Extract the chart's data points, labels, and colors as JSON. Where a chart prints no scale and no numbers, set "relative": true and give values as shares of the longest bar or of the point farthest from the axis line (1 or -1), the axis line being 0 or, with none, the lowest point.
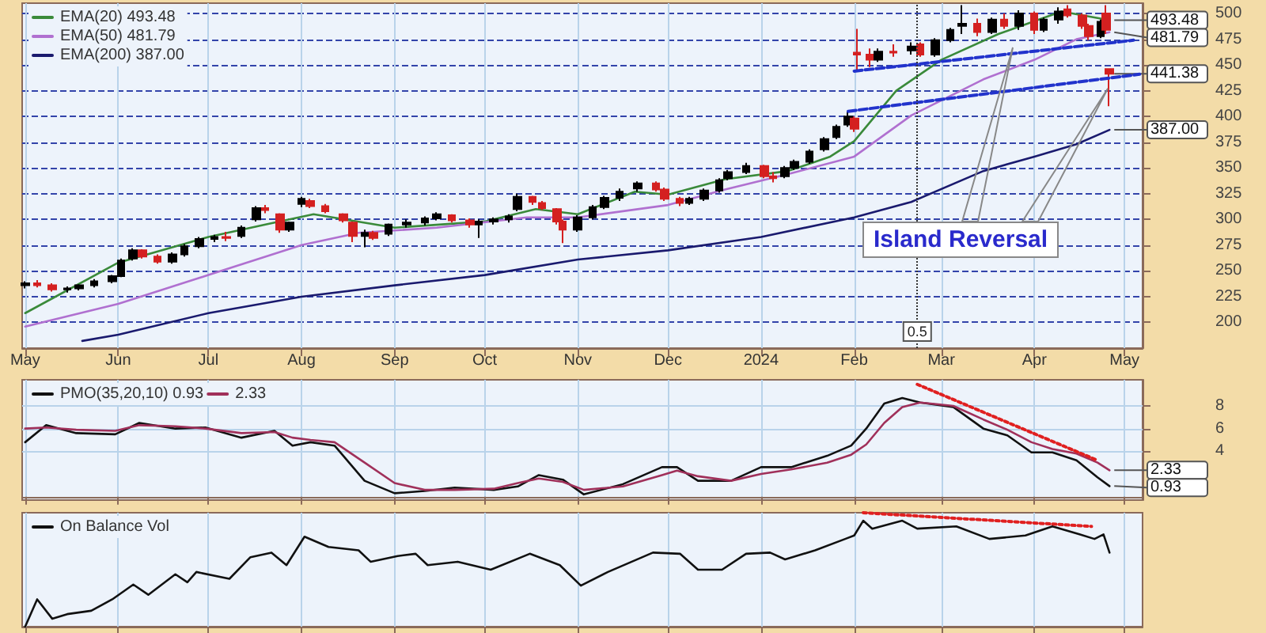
{
  "chart_data": [
    {
      "type": "candlestick",
      "colors": [
        "#000000",
        "#d42020",
        "#d42020",
        "#000000",
        "#000000",
        "#000000",
        "#000000",
        "#000000",
        "#000000",
        "#d42020",
        "#d42020",
        "#000000",
        "#000000",
        "#000000",
        "#000000",
        "#d42020",
        "#000000",
        "#000000",
        "#d42020",
        "#d42020",
        "#000000",
        "#000000",
        "#d42020",
        "#d42020",
        "#d42020",
        "#d42020",
        "#000000",
        "#d42020",
        "#000000",
        "#000000",
        "#000000",
        "#000000",
        "#d42020",
        "#d42020",
        "#000000",
        "#000000",
        "#000000",
        "#000000",
        "#d42020",
        "#d42020",
        "#d42020",
        "#d42020",
        "#000000",
        "#000000",
        "#000000",
        "#000000",
        "#000000",
        "#d42020",
        "#d42020",
        "#d42020",
        "#000000",
        "#000000",
        "#000000",
        "#000000",
        "#000000",
        "#d42020",
        "#d42020",
        "#000000",
        "#000000",
        "#000000",
        "#000000",
        "#000000",
        "#000000",
        "#d42020",
        "#d42020",
        "#d42020",
        "#000000",
        "#d42020",
        "#000000",
        "#d42020",
        "#000000",
        "#000000",
        "#000000",
        "#d42020",
        "#000000",
        "#d42020",
        "#000000",
        "#d42020",
        "#000000",
        "#000000",
        "#d42020",
        "#d42020",
        "#d42020",
        "#000000",
        "#d42020",
        "#d42020"
      ],
      "x": [
        "2023-05-01",
        "2023-05-05",
        "2023-05-10",
        "2023-05-15",
        "2023-05-19",
        "2023-05-24",
        "2023-05-30",
        "2023-06-02",
        "2023-06-06",
        "2023-06-09",
        "2023-06-14",
        "2023-06-19",
        "2023-06-23",
        "2023-06-28",
        "2023-07-03",
        "2023-07-07",
        "2023-07-12",
        "2023-07-17",
        "2023-07-20",
        "2023-07-25",
        "2023-07-28",
        "2023-08-01",
        "2023-08-04",
        "2023-08-09",
        "2023-08-15",
        "2023-08-18",
        "2023-08-22",
        "2023-08-25",
        "2023-08-30",
        "2023-09-05",
        "2023-09-11",
        "2023-09-15",
        "2023-09-20",
        "2023-09-26",
        "2023-09-29",
        "2023-10-04",
        "2023-10-09",
        "2023-10-12",
        "2023-10-17",
        "2023-10-20",
        "2023-10-25",
        "2023-10-27",
        "2023-11-01",
        "2023-11-06",
        "2023-11-10",
        "2023-11-15",
        "2023-11-21",
        "2023-11-27",
        "2023-11-30",
        "2023-12-05",
        "2023-12-08",
        "2023-12-13",
        "2023-12-18",
        "2023-12-21",
        "2023-12-27",
        "2024-01-02",
        "2024-01-05",
        "2024-01-09",
        "2024-01-12",
        "2024-01-17",
        "2024-01-22",
        "2024-01-26",
        "2024-01-30",
        "2024-02-01",
        "2024-02-02",
        "2024-02-06",
        "2024-02-09",
        "2024-02-14",
        "2024-02-20",
        "2024-02-23",
        "2024-02-28",
        "2024-03-04",
        "2024-03-08",
        "2024-03-13",
        "2024-03-18",
        "2024-03-22",
        "2024-03-27",
        "2024-04-01",
        "2024-04-04",
        "2024-04-09",
        "2024-04-12",
        "2024-04-17",
        "2024-04-19",
        "2024-04-23",
        "2024-04-25",
        "2024-04-26"
      ],
      "ohlc": [
        [
          236,
          240,
          233,
          238
        ],
        [
          238,
          241,
          234,
          236
        ],
        [
          236,
          238,
          230,
          232
        ],
        [
          232,
          235,
          229,
          233
        ],
        [
          233,
          237,
          231,
          236
        ],
        [
          236,
          242,
          234,
          240
        ],
        [
          240,
          246,
          238,
          245
        ],
        [
          245,
          262,
          244,
          260
        ],
        [
          262,
          272,
          260,
          270
        ],
        [
          270,
          271,
          262,
          264
        ],
        [
          264,
          266,
          257,
          259
        ],
        [
          259,
          268,
          257,
          266
        ],
        [
          266,
          276,
          264,
          274
        ],
        [
          274,
          283,
          272,
          281
        ],
        [
          281,
          285,
          278,
          283
        ],
        [
          283,
          288,
          279,
          282
        ],
        [
          284,
          294,
          282,
          292
        ],
        [
          300,
          313,
          298,
          311
        ],
        [
          311,
          314,
          306,
          309
        ],
        [
          305,
          306,
          287,
          290
        ],
        [
          290,
          298,
          288,
          297
        ],
        [
          315,
          322,
          312,
          320
        ],
        [
          318,
          320,
          311,
          313
        ],
        [
          313,
          315,
          306,
          308
        ],
        [
          305,
          306,
          297,
          299
        ],
        [
          297,
          298,
          278,
          284
        ],
        [
          284,
          290,
          273,
          287
        ],
        [
          287,
          289,
          280,
          282
        ],
        [
          286,
          296,
          284,
          295
        ],
        [
          295,
          300,
          292,
          297
        ],
        [
          297,
          303,
          294,
          301
        ],
        [
          301,
          307,
          299,
          305
        ],
        [
          304,
          305,
          297,
          299
        ],
        [
          299,
          301,
          292,
          295
        ],
        [
          295,
          300,
          282,
          298
        ],
        [
          298,
          302,
          295,
          300
        ],
        [
          300,
          305,
          297,
          303
        ],
        [
          310,
          325,
          308,
          322
        ],
        [
          322,
          323,
          314,
          317
        ],
        [
          316,
          318,
          309,
          311
        ],
        [
          310,
          311,
          295,
          298
        ],
        [
          298,
          300,
          277,
          290
        ],
        [
          290,
          304,
          288,
          302
        ],
        [
          302,
          314,
          300,
          312
        ],
        [
          312,
          323,
          310,
          321
        ],
        [
          321,
          330,
          318,
          327
        ],
        [
          330,
          337,
          327,
          335
        ],
        [
          335,
          337,
          327,
          329
        ],
        [
          329,
          331,
          318,
          320
        ],
        [
          320,
          322,
          313,
          316
        ],
        [
          316,
          322,
          314,
          320
        ],
        [
          320,
          330,
          318,
          328
        ],
        [
          328,
          340,
          326,
          338
        ],
        [
          340,
          348,
          338,
          346
        ],
        [
          346,
          355,
          344,
          352
        ],
        [
          352,
          353,
          340,
          342
        ],
        [
          342,
          346,
          336,
          340
        ],
        [
          342,
          352,
          340,
          350
        ],
        [
          350,
          358,
          348,
          356
        ],
        [
          356,
          368,
          354,
          366
        ],
        [
          368,
          380,
          366,
          378
        ],
        [
          380,
          392,
          378,
          390
        ],
        [
          392,
          405,
          390,
          400
        ],
        [
          398,
          400,
          385,
          388
        ],
        [
          462,
          485,
          445,
          460
        ],
        [
          460,
          466,
          448,
          455
        ],
        [
          455,
          466,
          453,
          463
        ],
        [
          463,
          470,
          458,
          462
        ],
        [
          464,
          472,
          460,
          468
        ],
        [
          470,
          472,
          458,
          460
        ],
        [
          460,
          476,
          458,
          474
        ],
        [
          474,
          486,
          472,
          484
        ],
        [
          488,
          508,
          480,
          490
        ],
        [
          490,
          495,
          478,
          482
        ],
        [
          482,
          496,
          480,
          494
        ],
        [
          494,
          500,
          485,
          488
        ],
        [
          488,
          503,
          484,
          500
        ],
        [
          500,
          502,
          480,
          484
        ],
        [
          484,
          496,
          482,
          494
        ],
        [
          494,
          506,
          490,
          502
        ],
        [
          504,
          508,
          496,
          498
        ],
        [
          498,
          500,
          485,
          488
        ],
        [
          488,
          490,
          474,
          478
        ],
        [
          478,
          494,
          476,
          492
        ],
        [
          500,
          508,
          480,
          484
        ],
        [
          446,
          446,
          410,
          441.38
        ]
      ],
      "series": [
        {
          "type": "line",
          "name": "EMA(20) 493.48",
          "color": "#3a8a3a",
          "x": [
            "2023-05-01",
            "2023-06-01",
            "2023-07-01",
            "2023-07-20",
            "2023-08-05",
            "2023-09-01",
            "2023-10-01",
            "2023-10-18",
            "2023-11-01",
            "2023-11-20",
            "2023-12-01",
            "2023-12-20",
            "2024-01-10",
            "2024-01-24",
            "2024-02-01",
            "2024-02-15",
            "2024-03-01",
            "2024-03-20",
            "2024-04-10",
            "2024-04-26"
          ],
          "values": [
            209,
            258,
            283,
            295,
            305,
            292,
            298,
            310,
            305,
            327,
            324,
            339,
            347,
            361,
            376,
            425,
            455,
            480,
            502,
            493.48
          ]
        },
        {
          "type": "line",
          "name": "EMA(50) 481.79",
          "color": "#b070d0",
          "x": [
            "2023-05-01",
            "2023-06-01",
            "2023-07-01",
            "2023-08-01",
            "2023-08-20",
            "2023-09-15",
            "2023-10-15",
            "2023-11-01",
            "2023-12-01",
            "2023-12-20",
            "2024-01-10",
            "2024-02-01",
            "2024-02-20",
            "2024-03-15",
            "2024-04-01",
            "2024-04-15",
            "2024-04-26"
          ],
          "values": [
            196,
            218,
            246,
            275,
            287,
            292,
            302,
            302,
            314,
            329,
            344,
            361,
            401,
            436,
            455,
            475,
            481.79
          ]
        },
        {
          "type": "line",
          "name": "EMA(200) 387.00",
          "color": "#1a1a6e",
          "x": [
            "2023-05-20",
            "2023-06-01",
            "2023-07-01",
            "2023-08-01",
            "2023-09-01",
            "2023-10-01",
            "2023-11-01",
            "2023-12-01",
            "2024-01-01",
            "2024-02-01",
            "2024-02-20",
            "2024-03-15",
            "2024-04-01",
            "2024-04-15",
            "2024-04-26"
          ],
          "values": [
            182,
            188,
            209,
            225,
            236,
            246,
            261,
            270,
            283,
            302,
            317,
            347,
            361,
            373,
            387
          ]
        },
        {
          "type": "line",
          "color": "#2233cc",
          "line_style": "dashed",
          "x": [
            "2024-02-01",
            "2024-05-04"
          ],
          "values": [
            444,
            474
          ]
        },
        {
          "type": "line",
          "color": "#2233cc",
          "line_style": "dashed",
          "x": [
            "2024-01-30",
            "2024-05-06"
          ],
          "values": [
            405,
            441
          ]
        }
      ],
      "xlim": [
        "2023-04-30",
        "2024-05-07"
      ],
      "xticks": [
        {
          "value": "2023-05-01",
          "label": "May"
        },
        {
          "value": "2023-06-01",
          "label": "Jun"
        },
        {
          "value": "2023-07-01",
          "label": "Jul"
        },
        {
          "value": "2023-08-01",
          "label": "Aug"
        },
        {
          "value": "2023-09-01",
          "label": "Sep"
        },
        {
          "value": "2023-10-01",
          "label": "Oct"
        },
        {
          "value": "2023-11-01",
          "label": "Nov"
        },
        {
          "value": "2023-12-01",
          "label": "Dec"
        },
        {
          "value": "2024-01-01",
          "label": "2024"
        },
        {
          "value": "2024-02-01",
          "label": "Feb"
        },
        {
          "value": "2024-03-01",
          "label": "Mar"
        },
        {
          "value": "2024-04-01",
          "label": "Apr"
        },
        {
          "value": "2024-05-01",
          "label": "May"
        }
      ],
      "ylim": [
        175,
        510
      ],
      "yticks": [
        200,
        225,
        250,
        275,
        300,
        325,
        350,
        375,
        400,
        425,
        450,
        475,
        500
      ],
      "grid": true,
      "legend": "top left",
      "ref_lines": [
        {
          "axis": "x",
          "value": "2024-02-22",
          "label": "0.5",
          "line_style": "dotted"
        }
      ],
      "annotations": [
        "Island Reversal",
        {
          "text": "493.48",
          "x": "2024-04-26",
          "y": 493.48
        },
        {
          "text": "481.79",
          "x": "2024-04-26",
          "y": 481.79
        },
        {
          "text": "441.38",
          "x": "2024-04-26",
          "y": 441.38
        },
        {
          "text": "387.00",
          "x": "2024-04-26",
          "y": 387
        }
      ]
    },
    {
      "type": "line",
      "tick_labels": "y",
      "grid": true,
      "legend": "top left",
      "x": [
        "2023-05-01",
        "2023-05-08",
        "2023-05-18",
        "2023-05-31",
        "2023-06-08",
        "2023-06-20",
        "2023-06-30",
        "2023-07-12",
        "2023-07-23",
        "2023-07-29",
        "2023-08-04",
        "2023-08-12",
        "2023-08-22",
        "2023-09-01",
        "2023-09-11",
        "2023-09-21",
        "2023-10-04",
        "2023-10-12",
        "2023-10-19",
        "2023-10-27",
        "2023-11-03",
        "2023-11-16",
        "2023-11-29",
        "2023-12-04",
        "2023-12-11",
        "2023-12-22",
        "2024-01-01",
        "2024-01-11",
        "2024-01-23",
        "2024-01-31",
        "2024-02-05",
        "2024-02-11",
        "2024-02-17",
        "2024-02-23",
        "2024-03-05",
        "2024-03-15",
        "2024-03-23",
        "2024-03-31",
        "2024-04-07",
        "2024-04-15",
        "2024-04-22",
        "2024-04-26"
      ],
      "series": [
        {
          "name": "PMO(35,20,10) 0.93",
          "color": "#111111",
          "values": [
            4.8,
            6.3,
            5.6,
            5.5,
            6.5,
            6.0,
            6.1,
            5.2,
            5.8,
            4.5,
            4.8,
            4.5,
            1.4,
            0.3,
            0.5,
            0.8,
            0.6,
            0.9,
            1.9,
            1.5,
            0.2,
            1.1,
            2.6,
            2.6,
            1.4,
            1.4,
            2.6,
            2.6,
            3.6,
            4.5,
            6.0,
            8.2,
            8.7,
            8.3,
            7.9,
            6.0,
            5.4,
            3.9,
            3.9,
            3.2,
            1.7,
            0.93
          ]
        },
        {
          "name": "2.33",
          "color": "#a0305a",
          "values": [
            6.0,
            6.1,
            5.9,
            5.8,
            6.3,
            6.2,
            6.0,
            5.6,
            5.7,
            5.2,
            5.0,
            4.8,
            3.0,
            1.2,
            0.6,
            0.6,
            0.7,
            1.2,
            1.6,
            1.3,
            0.6,
            0.9,
            1.9,
            2.3,
            1.8,
            1.4,
            2.0,
            2.4,
            3.0,
            3.7,
            4.6,
            6.5,
            7.9,
            8.3,
            8.0,
            6.8,
            5.9,
            4.8,
            4.2,
            3.8,
            3.0,
            2.33
          ]
        },
        {
          "color": "#e02020",
          "line_style": "dotted",
          "x": [
            "2024-02-22",
            "2024-04-22"
          ],
          "values": [
            9.9,
            3.2
          ]
        }
      ],
      "xlim": [
        "2023-04-30",
        "2024-05-07"
      ],
      "ylim": [
        -0.3,
        10.3
      ],
      "yticks": [
        4,
        6,
        8
      ],
      "xticks": [
        {
          "value": "2023-05-01",
          "label": null
        },
        {
          "value": "2023-06-01",
          "label": null
        },
        {
          "value": "2023-07-01",
          "label": null
        },
        {
          "value": "2023-08-01",
          "label": null
        },
        {
          "value": "2023-09-01",
          "label": null
        },
        {
          "value": "2023-10-01",
          "label": null
        },
        {
          "value": "2023-11-01",
          "label": null
        },
        {
          "value": "2023-12-01",
          "label": null
        },
        {
          "value": "2024-01-01",
          "label": null
        },
        {
          "value": "2024-02-01",
          "label": null
        },
        {
          "value": "2024-03-01",
          "label": null
        },
        {
          "value": "2024-04-01",
          "label": null
        },
        {
          "value": "2024-05-01",
          "label": null
        }
      ],
      "annotations": [
        {
          "text": "2.33",
          "x": "2024-04-26",
          "y": 2.33
        },
        {
          "text": "0.93",
          "x": "2024-04-26",
          "y": 0.93
        }
      ]
    },
    {
      "type": "line",
      "relative": true,
      "tick_labels": false,
      "grid": true,
      "legend": "top left",
      "x": [
        "2023-05-01",
        "2023-05-05",
        "2023-05-10",
        "2023-05-15",
        "2023-05-23",
        "2023-05-30",
        "2023-06-06",
        "2023-06-11",
        "2023-06-20",
        "2023-06-24",
        "2023-06-27",
        "2023-07-08",
        "2023-07-15",
        "2023-07-22",
        "2023-07-27",
        "2023-08-02",
        "2023-08-10",
        "2023-08-20",
        "2023-08-24",
        "2023-09-02",
        "2023-09-08",
        "2023-09-12",
        "2023-09-22",
        "2023-10-03",
        "2023-10-16",
        "2023-10-26",
        "2023-11-02",
        "2023-11-11",
        "2023-11-26",
        "2023-12-05",
        "2023-12-11",
        "2023-12-19",
        "2023-12-27",
        "2024-01-04",
        "2024-01-09",
        "2024-01-19",
        "2024-01-29",
        "2024-02-01",
        "2024-02-04",
        "2024-02-07",
        "2024-02-17",
        "2024-02-22",
        "2024-03-06",
        "2024-03-17",
        "2024-03-29",
        "2024-04-07",
        "2024-04-16",
        "2024-04-21",
        "2024-04-24",
        "2024-04-26"
      ],
      "series": [
        {
          "name": "On Balance Vol",
          "color": "#111111",
          "values": [
            0,
            0.24,
            0.07,
            0.11,
            0.14,
            0.24,
            0.37,
            0.28,
            0.46,
            0.39,
            0.48,
            0.42,
            0.61,
            0.65,
            0.54,
            0.79,
            0.7,
            0.67,
            0.57,
            0.62,
            0.64,
            0.54,
            0.57,
            0.5,
            0.64,
            0.54,
            0.36,
            0.48,
            0.65,
            0.64,
            0.5,
            0.5,
            0.64,
            0.65,
            0.59,
            0.67,
            0.77,
            0.8,
            0.93,
            0.86,
            0.93,
            0.86,
            0.88,
            0.77,
            0.8,
            0.88,
            0.81,
            0.77,
            0.81,
            0.65
          ]
        },
        {
          "color": "#e02020",
          "line_style": "dotted",
          "x": [
            "2024-02-04",
            "2024-04-20"
          ],
          "values": [
            1.0,
            0.88
          ]
        }
      ],
      "xlim": [
        "2023-04-30",
        "2024-05-07"
      ],
      "xticks": [
        {
          "value": "2023-05-01",
          "label": null
        },
        {
          "value": "2023-06-01",
          "label": null
        },
        {
          "value": "2023-07-01",
          "label": null
        },
        {
          "value": "2023-08-01",
          "label": null
        },
        {
          "value": "2023-09-01",
          "label": null
        },
        {
          "value": "2023-10-01",
          "label": null
        },
        {
          "value": "2023-11-01",
          "label": null
        },
        {
          "value": "2023-12-01",
          "label": null
        },
        {
          "value": "2024-01-01",
          "label": null
        },
        {
          "value": "2024-02-01",
          "label": null
        },
        {
          "value": "2024-03-01",
          "label": null
        },
        {
          "value": "2024-04-01",
          "label": null
        },
        {
          "value": "2024-05-01",
          "label": null
        }
      ]
    }
  ]
}
